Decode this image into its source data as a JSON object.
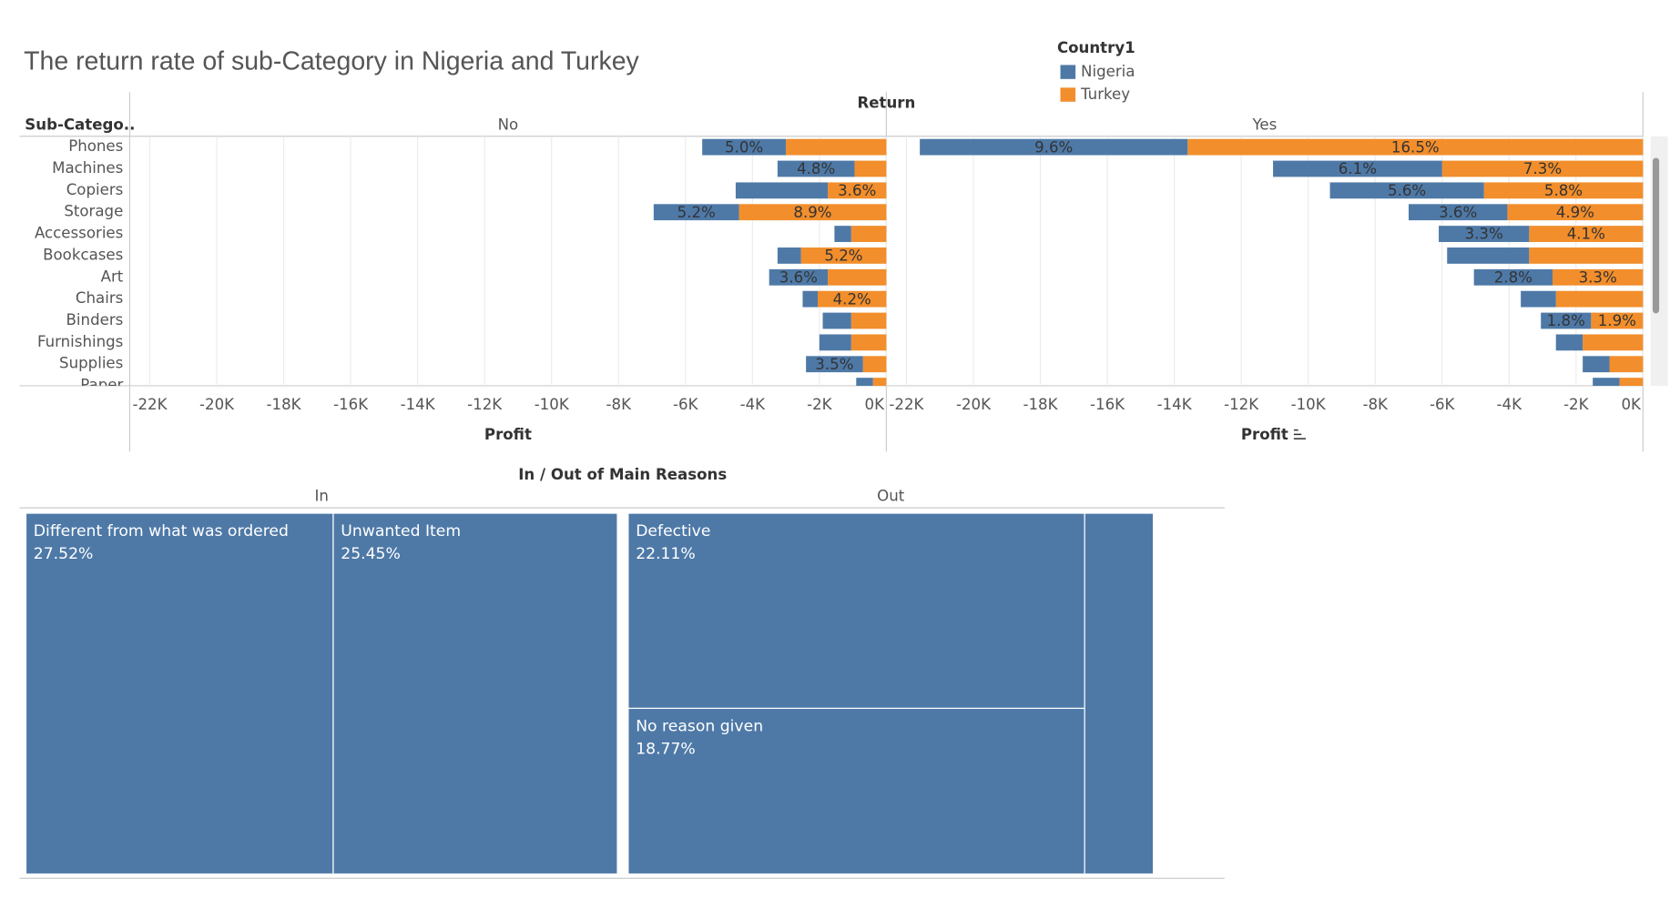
{
  "chart_data": [
    {
      "type": "bar",
      "orientation": "horizontal",
      "title": "The return rate of sub-Category in Nigeria and Turkey",
      "legend_title": "Country1",
      "facet_title": "Return",
      "category_title": "Sub-Catego..",
      "categories": [
        "Phones",
        "Machines",
        "Copiers",
        "Storage",
        "Accessories",
        "Bookcases",
        "Art",
        "Chairs",
        "Binders",
        "Furnishings",
        "Supplies",
        "Paper"
      ],
      "panels": [
        "No",
        "Yes"
      ],
      "x_label": "Profit",
      "xlim": [
        -22600,
        0
      ],
      "xticks": [
        {
          "value": -22000,
          "label": "-22K"
        },
        {
          "value": -20000,
          "label": "-20K"
        },
        {
          "value": -18000,
          "label": "-18K"
        },
        {
          "value": -16000,
          "label": "-16K"
        },
        {
          "value": -14000,
          "label": "-14K"
        },
        {
          "value": -12000,
          "label": "-12K"
        },
        {
          "value": -10000,
          "label": "-10K"
        },
        {
          "value": -8000,
          "label": "-8K"
        },
        {
          "value": -6000,
          "label": "-6K"
        },
        {
          "value": -4000,
          "label": "-4K"
        },
        {
          "value": -2000,
          "label": "-2K"
        },
        {
          "value": 0,
          "label": "0K"
        }
      ],
      "grid": true,
      "series": [
        {
          "name": "Nigeria",
          "color": "#4e79a7",
          "panels": [
            {
              "values": [
                -2500,
                -2300,
                -2750,
                -2550,
                -500,
                -700,
                -1750,
                -450,
                -850,
                -950,
                -1700,
                -500
              ],
              "labels": [
                "5.0%",
                "4.8%",
                null,
                "5.2%",
                null,
                null,
                "3.6%",
                null,
                null,
                null,
                "3.5%",
                null
              ]
            },
            {
              "values": [
                -8000,
                -5050,
                -4600,
                -2950,
                -2700,
                -2450,
                -2350,
                -1050,
                -1500,
                -800,
                -800,
                -800
              ],
              "labels": [
                "9.6%",
                "6.1%",
                "5.6%",
                "3.6%",
                "3.3%",
                null,
                "2.8%",
                null,
                "1.8%",
                null,
                null,
                null
              ]
            }
          ]
        },
        {
          "name": "Turkey",
          "color": "#f28e2b",
          "panels": [
            {
              "values": [
                -3000,
                -950,
                -1750,
                -4400,
                -1050,
                -2550,
                -1750,
                -2050,
                -1050,
                -1050,
                -700,
                -400
              ],
              "labels": [
                null,
                null,
                "3.6%",
                "8.9%",
                null,
                "5.2%",
                null,
                "4.2%",
                null,
                null,
                null,
                null
              ]
            },
            {
              "values": [
                -13600,
                -6000,
                -4750,
                -4050,
                -3400,
                -3400,
                -2700,
                -2600,
                -1550,
                -1800,
                -1000,
                -700
              ],
              "labels": [
                "16.5%",
                "7.3%",
                "5.8%",
                "4.9%",
                "4.1%",
                null,
                "3.3%",
                null,
                "1.9%",
                null,
                null,
                null
              ]
            }
          ]
        }
      ]
    },
    {
      "type": "treemap",
      "title": "In / Out of Main Reasons",
      "groups": [
        "In",
        "Out"
      ],
      "categories": [
        "Different from what was ordered",
        "Unwanted Item",
        "Defective",
        "No reason given",
        null
      ],
      "category_groups": [
        "In",
        "In",
        "Out",
        "Out",
        "Out"
      ],
      "values": [
        27.52,
        25.45,
        22.11,
        18.77,
        6.15
      ],
      "value_labels": [
        "27.52%",
        "25.45%",
        "22.11%",
        "18.77%",
        null
      ],
      "color": "#4e79a7"
    }
  ]
}
